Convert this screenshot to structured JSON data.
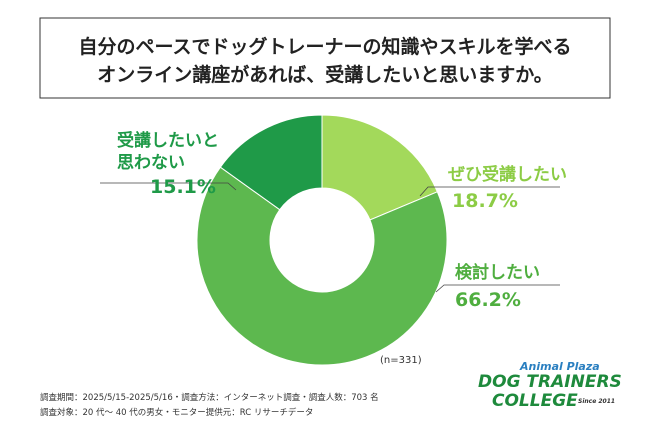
{
  "chart_data": {
    "type": "donut",
    "title": [
      "自分のペースでドッグトレーナーの知識やスキルを学べる",
      "オンライン講座があれば、受講したいと思いますか。"
    ],
    "categories": [
      "ぜひ受講したい",
      "検討したい",
      "受講したいと思わない"
    ],
    "values": [
      18.7,
      66.2,
      15.1
    ],
    "value_labels": [
      "18.7%",
      "66.2%",
      "15.1%"
    ],
    "colors": [
      "#a3d95b",
      "#5db84f",
      "#1f9a48"
    ],
    "note": "(n=331)",
    "footnotes": [
      "調査期間：2025/5/15-2025/5/16・調査方法：インターネット調査・調査人数：703 名",
      "調査対象：20 代〜 40 代の男女・モニター提供元：RC リサーチデータ"
    ],
    "logo": [
      "Animal Plaza",
      "DOG TRAINERS",
      "COLLEGE",
      "Since 2011"
    ]
  }
}
